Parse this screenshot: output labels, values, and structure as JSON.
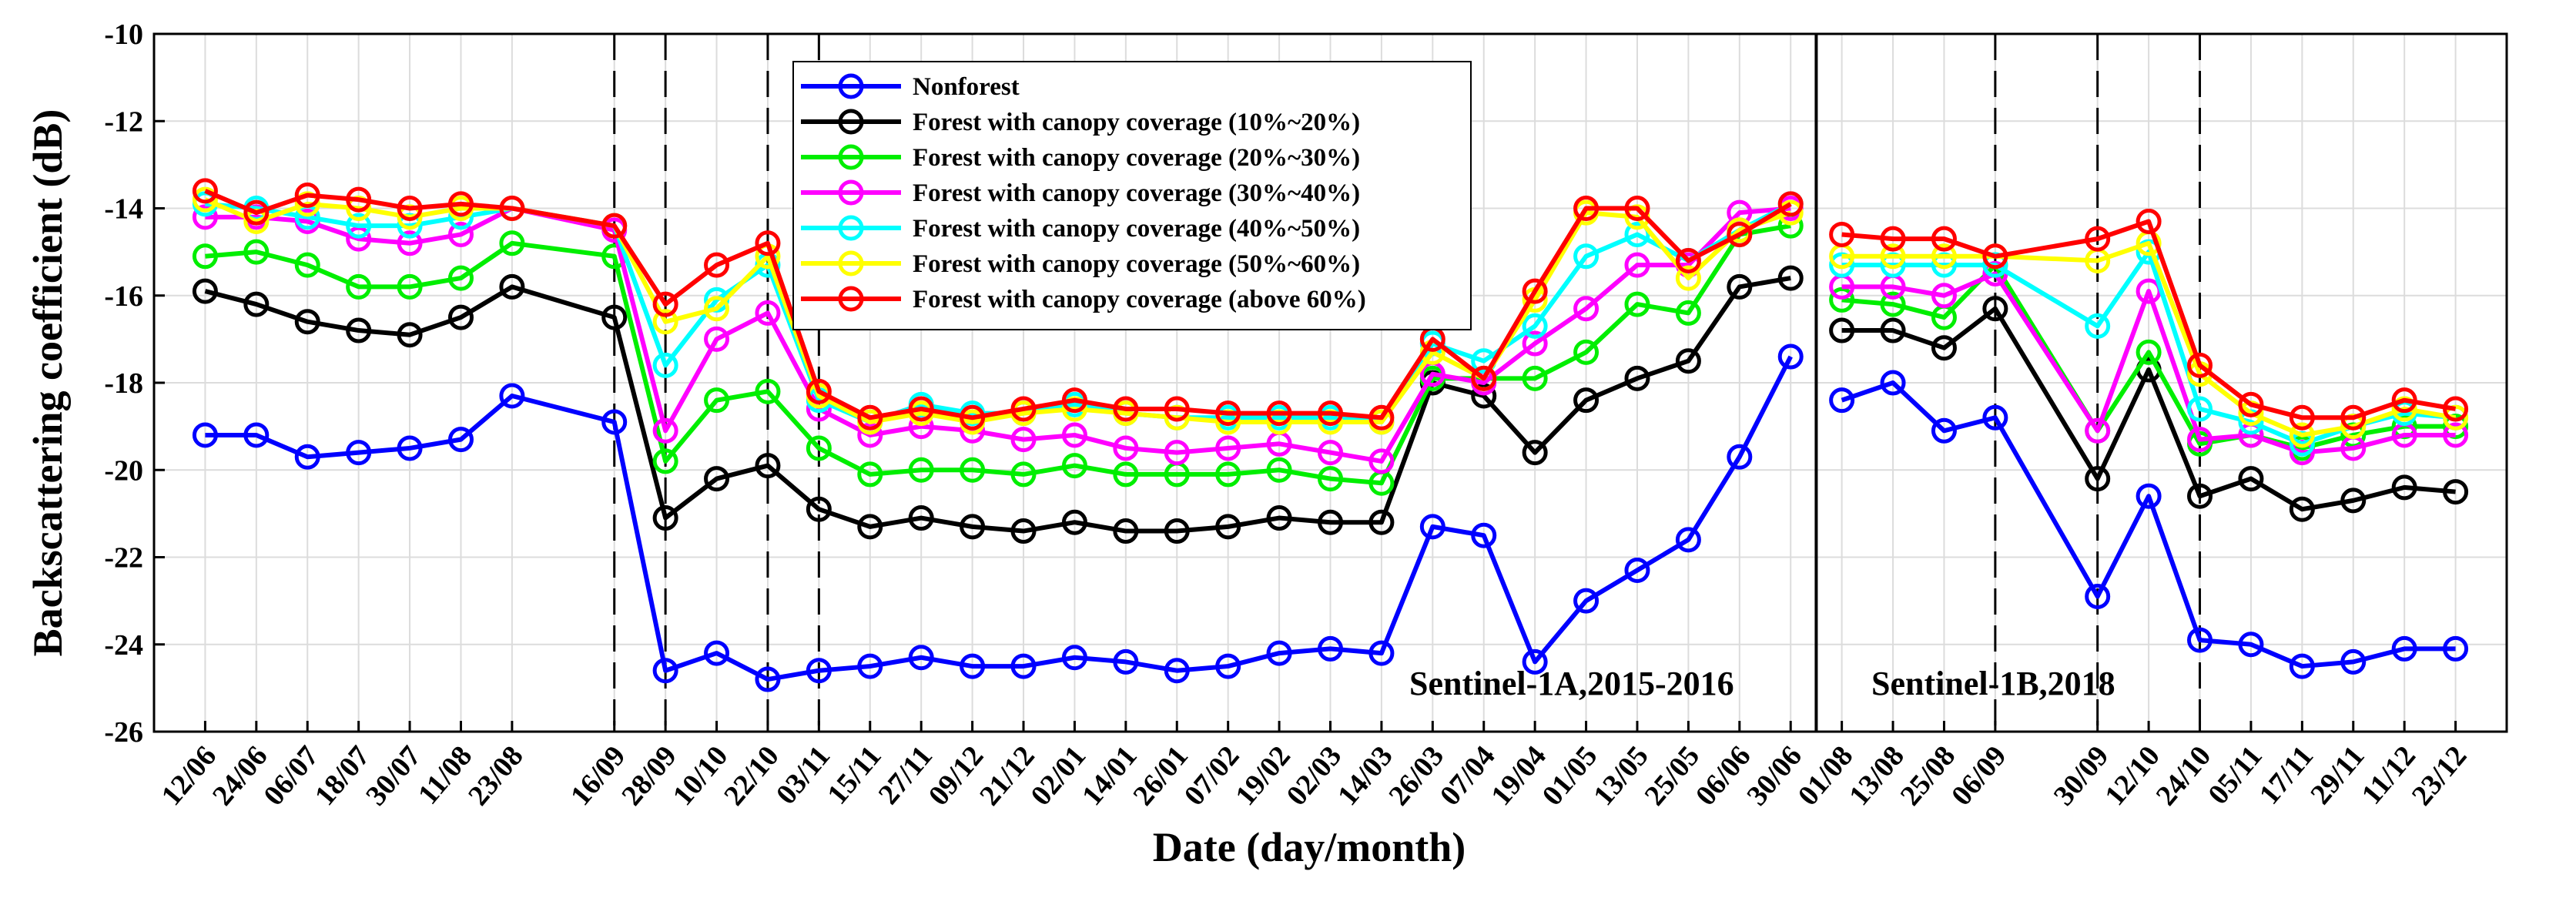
{
  "chart_data": {
    "type": "line",
    "xlabel": "Date (day/month)",
    "ylabel": "Backscattering coefficient (dB)",
    "ylim": [
      -26,
      -10
    ],
    "yticks": [
      -10,
      -12,
      -14,
      -16,
      -18,
      -20,
      -22,
      -24,
      -26
    ],
    "grid": true,
    "legend_position": "top-center",
    "categories": [
      "12/06",
      "24/06",
      "06/07",
      "18/07",
      "30/07",
      "11/08",
      "23/08",
      "16/09",
      "28/09",
      "10/10",
      "22/10",
      "03/11",
      "15/11",
      "27/11",
      "09/12",
      "21/12",
      "02/01",
      "14/01",
      "26/01",
      "07/02",
      "19/02",
      "02/03",
      "14/03",
      "26/03",
      "07/04",
      "19/04",
      "01/05",
      "13/05",
      "25/05",
      "06/06",
      "30/06",
      "01/08",
      "13/08",
      "25/08",
      "06/09",
      "30/09",
      "12/10",
      "24/10",
      "05/11",
      "17/11",
      "29/11",
      "11/12",
      "23/12"
    ],
    "x": [
      0,
      1,
      2,
      3,
      4,
      5,
      6,
      8,
      9,
      10,
      11,
      12,
      13,
      14,
      15,
      16,
      17,
      18,
      19,
      20,
      21,
      22,
      23,
      24,
      25,
      26,
      27,
      28,
      29,
      30,
      31,
      32,
      33,
      34,
      35,
      37,
      38,
      39,
      40,
      41,
      42,
      43,
      44
    ],
    "xlim": [
      -1,
      45
    ],
    "segments": [
      [
        0,
        30
      ],
      [
        31,
        42
      ]
    ],
    "solid_vlines": [
      31.5
    ],
    "dashed_vlines": [
      8,
      9,
      11,
      12,
      35,
      37,
      39
    ],
    "series": [
      {
        "name": "Nonforest",
        "color": "#0000ff",
        "values": [
          -19.2,
          -19.2,
          -19.7,
          -19.6,
          -19.5,
          -19.3,
          -18.3,
          -18.9,
          -24.6,
          -24.2,
          -24.8,
          -24.6,
          -24.5,
          -24.3,
          -24.5,
          -24.5,
          -24.3,
          -24.4,
          -24.6,
          -24.5,
          -24.2,
          -24.1,
          -24.2,
          -21.3,
          -21.5,
          -24.4,
          -23.0,
          -22.3,
          -21.6,
          -19.7,
          -17.4,
          -18.4,
          -18.0,
          -19.1,
          -18.8,
          -22.9,
          -20.6,
          -23.9,
          -24.0,
          -24.5,
          -24.4,
          -24.1,
          -24.1
        ]
      },
      {
        "name": "Forest with canopy coverage (10%~20%)",
        "color": "#000000",
        "values": [
          -15.9,
          -16.2,
          -16.6,
          -16.8,
          -16.9,
          -16.5,
          -15.8,
          -16.5,
          -21.1,
          -20.2,
          -19.9,
          -20.9,
          -21.3,
          -21.1,
          -21.3,
          -21.4,
          -21.2,
          -21.4,
          -21.4,
          -21.3,
          -21.1,
          -21.2,
          -21.2,
          -18.0,
          -18.3,
          -19.6,
          -18.4,
          -17.9,
          -17.5,
          -15.8,
          -15.6,
          -16.8,
          -16.8,
          -17.2,
          -16.3,
          -20.2,
          -17.7,
          -20.6,
          -20.2,
          -20.9,
          -20.7,
          -20.4,
          -20.5
        ]
      },
      {
        "name": "Forest with canopy coverage (20%~30%)",
        "color": "#00ee00",
        "values": [
          -15.1,
          -15.0,
          -15.3,
          -15.8,
          -15.8,
          -15.6,
          -14.8,
          -15.1,
          -19.8,
          -18.4,
          -18.2,
          -19.5,
          -20.1,
          -20.0,
          -20.0,
          -20.1,
          -19.9,
          -20.1,
          -20.1,
          -20.1,
          -20.0,
          -20.2,
          -20.3,
          -17.9,
          -17.9,
          -17.9,
          -17.3,
          -16.2,
          -16.4,
          -14.6,
          -14.4,
          -16.1,
          -16.2,
          -16.5,
          -15.3,
          -19.1,
          -17.3,
          -19.4,
          -19.2,
          -19.5,
          -19.2,
          -19.0,
          -19.0
        ]
      },
      {
        "name": "Forest with canopy coverage (30%~40%)",
        "color": "#ff00ff",
        "values": [
          -14.2,
          -14.2,
          -14.3,
          -14.7,
          -14.8,
          -14.6,
          -14.0,
          -14.5,
          -19.1,
          -17.0,
          -16.4,
          -18.6,
          -19.2,
          -19.0,
          -19.1,
          -19.3,
          -19.2,
          -19.5,
          -19.6,
          -19.5,
          -19.4,
          -19.6,
          -19.8,
          -17.8,
          -18.0,
          -17.1,
          -16.3,
          -15.3,
          -15.3,
          -14.1,
          -14.0,
          -15.8,
          -15.8,
          -16.0,
          -15.5,
          -19.1,
          -15.9,
          -19.3,
          -19.2,
          -19.6,
          -19.5,
          -19.2,
          -19.2
        ]
      },
      {
        "name": "Forest with canopy coverage (40%~50%)",
        "color": "#00ffff",
        "values": [
          -13.9,
          -14.0,
          -14.2,
          -14.4,
          -14.4,
          -14.2,
          -14.0,
          -14.4,
          -17.6,
          -16.1,
          -15.3,
          -18.4,
          -18.9,
          -18.5,
          -18.7,
          -18.7,
          -18.5,
          -18.7,
          -18.8,
          -18.8,
          -18.8,
          -18.8,
          -18.9,
          -17.1,
          -17.5,
          -16.7,
          -15.1,
          -14.6,
          -15.2,
          -14.5,
          -13.9,
          -15.3,
          -15.3,
          -15.3,
          -15.3,
          -16.7,
          -15.0,
          -18.6,
          -18.9,
          -19.4,
          -19.0,
          -18.7,
          -18.8
        ]
      },
      {
        "name": "Forest with canopy coverage (50%~60%)",
        "color": "#ffff00",
        "values": [
          -13.8,
          -14.3,
          -13.9,
          -14.0,
          -14.2,
          -14.0,
          -14.0,
          -14.4,
          -16.6,
          -16.3,
          -15.1,
          -18.3,
          -18.9,
          -18.7,
          -18.9,
          -18.7,
          -18.6,
          -18.7,
          -18.8,
          -18.9,
          -18.9,
          -18.9,
          -18.9,
          -17.3,
          -17.9,
          -16.1,
          -14.1,
          -14.2,
          -15.6,
          -14.5,
          -14.1,
          -15.1,
          -15.1,
          -15.1,
          -15.1,
          -15.2,
          -14.8,
          -17.8,
          -18.7,
          -19.2,
          -19.0,
          -18.6,
          -18.8
        ]
      },
      {
        "name": "Forest with canopy coverage (above 60%)",
        "color": "#ff0000",
        "values": [
          -13.6,
          -14.1,
          -13.7,
          -13.8,
          -14.0,
          -13.9,
          -14.0,
          -14.4,
          -16.2,
          -15.3,
          -14.8,
          -18.2,
          -18.8,
          -18.6,
          -18.8,
          -18.6,
          -18.4,
          -18.6,
          -18.6,
          -18.7,
          -18.7,
          -18.7,
          -18.8,
          -17.0,
          -17.9,
          -15.9,
          -14.0,
          -14.0,
          -15.2,
          -14.6,
          -13.9,
          -14.6,
          -14.7,
          -14.7,
          -15.1,
          -14.7,
          -14.3,
          -17.6,
          -18.5,
          -18.8,
          -18.8,
          -18.4,
          -18.6
        ]
      }
    ],
    "annotations": [
      "Sentinel-1A,2015-2016",
      "Sentinel-1B,2018"
    ]
  }
}
